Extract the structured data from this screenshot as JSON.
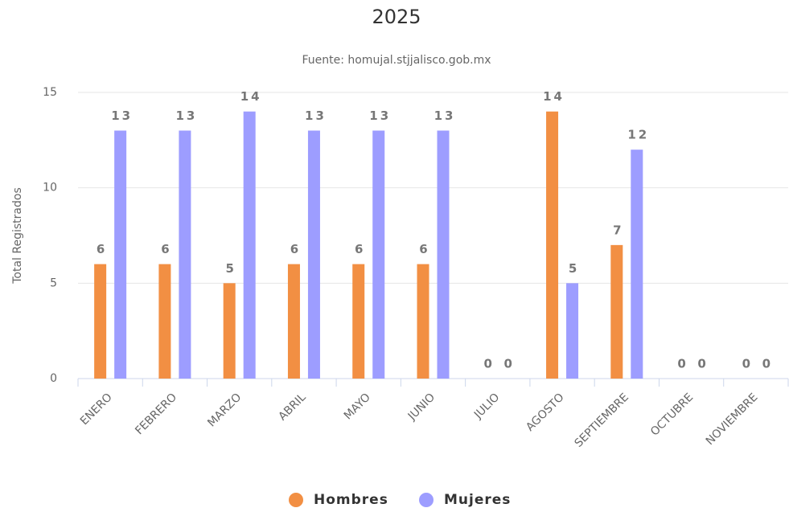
{
  "chart_data": {
    "type": "bar",
    "title": "2025",
    "subtitle": "Fuente: homujal.stjjalisco.gob.mx",
    "y_label": "Total Registrados",
    "categories": [
      "ENERO",
      "FEBRERO",
      "MARZO",
      "ABRIL",
      "MAYO",
      "JUNIO",
      "JULIO",
      "AGOSTO",
      "SEPTIEMBRE",
      "OCTUBRE",
      "NOVIEMBRE"
    ],
    "series": [
      {
        "name": "Hombres",
        "color": "#f28f43",
        "values": [
          6,
          6,
          5,
          6,
          6,
          6,
          0,
          14,
          7,
          0,
          0
        ]
      },
      {
        "name": "Mujeres",
        "color": "#9d9dff",
        "values": [
          13,
          13,
          14,
          13,
          13,
          13,
          0,
          5,
          12,
          0,
          0
        ]
      }
    ],
    "ylim": [
      0,
      15
    ],
    "yticks": [
      0,
      5,
      10,
      15
    ],
    "grid": true,
    "legend": "bottom"
  }
}
